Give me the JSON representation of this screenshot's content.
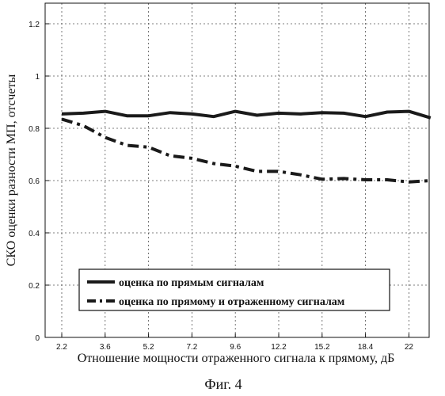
{
  "chart_data": {
    "type": "line",
    "x": [
      2.2,
      2.9,
      3.6,
      4.4,
      5.2,
      6.2,
      7.2,
      8.4,
      9.6,
      10.9,
      12.2,
      13.7,
      15.2,
      16.8,
      18.4,
      20.2,
      22,
      23.5
    ],
    "x_tick_labels": [
      "2.2",
      "3.6",
      "5.2",
      "7.2",
      "9.6",
      "12.2",
      "15.2",
      "18.4",
      "22"
    ],
    "y_tick_labels": [
      "0",
      "0.2",
      "0.4",
      "0.6",
      "0.8",
      "1",
      "1.2"
    ],
    "ylim": [
      0,
      1.3
    ],
    "ylabel": "СКО оценки разности МП, отсчеты",
    "xlabel": "Отношение мощности отраженного сигнала к прямому, дБ",
    "grid": true,
    "legend_position": "bottom-center",
    "series": [
      {
        "name": "оценка по прямым сигналам",
        "style": "solid",
        "values": [
          0.855,
          0.858,
          0.865,
          0.848,
          0.848,
          0.86,
          0.855,
          0.845,
          0.865,
          0.85,
          0.858,
          0.855,
          0.86,
          0.858,
          0.845,
          0.862,
          0.865,
          0.84
        ]
      },
      {
        "name": "оценка по прямому и отраженному сигналам",
        "style": "dashdot",
        "values": [
          0.835,
          0.81,
          0.765,
          0.735,
          0.728,
          0.695,
          0.685,
          0.665,
          0.655,
          0.635,
          0.635,
          0.622,
          0.605,
          0.608,
          0.603,
          0.603,
          0.595,
          0.6
        ]
      }
    ],
    "caption": "Фиг. 4",
    "colors": {
      "series": "#1a1a1a",
      "grid": "#555555"
    }
  }
}
